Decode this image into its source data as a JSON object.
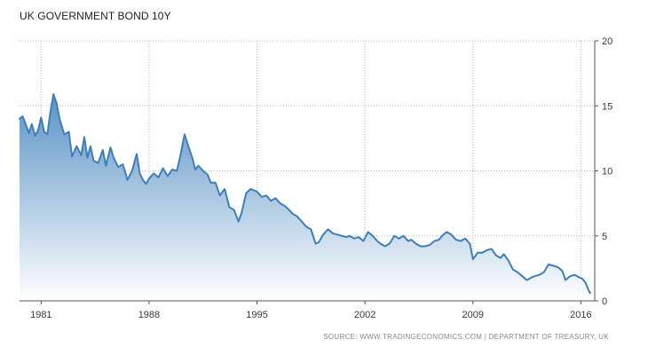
{
  "title": "UK GOVERNMENT BOND 10Y",
  "source": "SOURCE: WWW.TRADINGECONOMICS.COM | DEPARTMENT OF TREASURY, UK",
  "colors": {
    "line": "#3f7fb8",
    "fill_top": "#5a92c6",
    "fill_bottom": "#ffffff",
    "grid": "#b9b9b9",
    "axis": "#555555"
  },
  "chart_data": {
    "type": "area",
    "title": "UK GOVERNMENT BOND 10Y",
    "xlabel": "",
    "ylabel": "",
    "xlim": [
      1979.6,
      2016.9
    ],
    "ylim": [
      0,
      20
    ],
    "x_ticks": [
      1981,
      1988,
      1995,
      2002,
      2009,
      2016
    ],
    "x_tick_labels": [
      "1981",
      "1988",
      "1995",
      "2002",
      "2009",
      "2016"
    ],
    "y_ticks": [
      0,
      5,
      10,
      15,
      20
    ],
    "y_tick_labels": [
      "0",
      "5",
      "10",
      "15",
      "20"
    ],
    "grid": "dotted",
    "series": [
      {
        "x": [
          1979.6,
          1979.8,
          1980.0,
          1980.2,
          1980.4,
          1980.6,
          1980.8,
          1981.0,
          1981.2,
          1981.4,
          1981.6,
          1981.8,
          1982.0,
          1982.2,
          1982.5,
          1982.8,
          1983.0,
          1983.3,
          1983.6,
          1983.8,
          1984.0,
          1984.2,
          1984.4,
          1984.7,
          1985.0,
          1985.2,
          1985.5,
          1985.7,
          1986.0,
          1986.3,
          1986.6,
          1986.9,
          1987.2,
          1987.4,
          1987.6,
          1987.8,
          1988.0,
          1988.3,
          1988.6,
          1988.9,
          1989.2,
          1989.5,
          1989.8,
          1990.0,
          1990.3,
          1990.6,
          1990.8,
          1991.0,
          1991.2,
          1991.5,
          1991.8,
          1992.0,
          1992.3,
          1992.6,
          1992.9,
          1993.2,
          1993.5,
          1993.8,
          1994.0,
          1994.3,
          1994.6,
          1994.8,
          1995.0,
          1995.3,
          1995.6,
          1995.9,
          1996.2,
          1996.5,
          1996.8,
          1997.0,
          1997.3,
          1997.6,
          1997.9,
          1998.2,
          1998.5,
          1998.8,
          1999.0,
          1999.3,
          1999.6,
          1999.9,
          2000.2,
          2000.5,
          2000.8,
          2001.0,
          2001.3,
          2001.6,
          2001.9,
          2002.2,
          2002.5,
          2002.8,
          2003.0,
          2003.3,
          2003.6,
          2003.9,
          2004.2,
          2004.5,
          2004.8,
          2005.0,
          2005.3,
          2005.6,
          2005.9,
          2006.2,
          2006.5,
          2006.8,
          2007.0,
          2007.3,
          2007.6,
          2007.9,
          2008.2,
          2008.5,
          2008.8,
          2009.0,
          2009.3,
          2009.6,
          2009.9,
          2010.2,
          2010.5,
          2010.8,
          2011.0,
          2011.3,
          2011.6,
          2011.9,
          2012.2,
          2012.5,
          2012.8,
          2013.0,
          2013.3,
          2013.6,
          2013.9,
          2014.2,
          2014.5,
          2014.8,
          2015.0,
          2015.3,
          2015.6,
          2015.9,
          2016.1,
          2016.3,
          2016.5,
          2016.6
        ],
        "y": [
          14.0,
          14.2,
          13.6,
          12.9,
          13.6,
          12.7,
          13.1,
          14.1,
          13.0,
          12.8,
          14.5,
          15.9,
          15.2,
          14.0,
          12.8,
          13.0,
          11.1,
          11.9,
          11.2,
          12.6,
          11.0,
          11.9,
          10.8,
          10.6,
          11.6,
          10.4,
          11.8,
          11.0,
          10.3,
          10.5,
          9.3,
          10.0,
          11.3,
          9.8,
          9.3,
          9.0,
          9.4,
          9.8,
          9.5,
          10.2,
          9.6,
          10.1,
          10.0,
          11.0,
          12.8,
          11.7,
          11.0,
          10.1,
          10.4,
          10.0,
          9.7,
          9.1,
          9.1,
          8.1,
          8.6,
          7.2,
          7.0,
          6.1,
          6.8,
          8.3,
          8.6,
          8.5,
          8.4,
          8.0,
          8.1,
          7.7,
          7.9,
          7.5,
          7.3,
          7.1,
          6.7,
          6.5,
          6.1,
          5.7,
          5.5,
          4.4,
          4.5,
          5.1,
          5.5,
          5.2,
          5.1,
          5.0,
          4.9,
          5.0,
          4.8,
          4.9,
          4.6,
          5.3,
          5.0,
          4.6,
          4.4,
          4.2,
          4.4,
          5.0,
          4.8,
          5.0,
          4.6,
          4.7,
          4.4,
          4.2,
          4.2,
          4.3,
          4.6,
          4.7,
          5.0,
          5.3,
          5.1,
          4.7,
          4.6,
          4.8,
          4.4,
          3.2,
          3.7,
          3.7,
          3.9,
          4.0,
          3.5,
          3.3,
          3.6,
          3.1,
          2.4,
          2.2,
          1.9,
          1.6,
          1.8,
          1.9,
          2.0,
          2.2,
          2.8,
          2.7,
          2.6,
          2.3,
          1.6,
          1.9,
          2.0,
          1.8,
          1.7,
          1.4,
          0.8,
          0.6
        ]
      }
    ]
  }
}
